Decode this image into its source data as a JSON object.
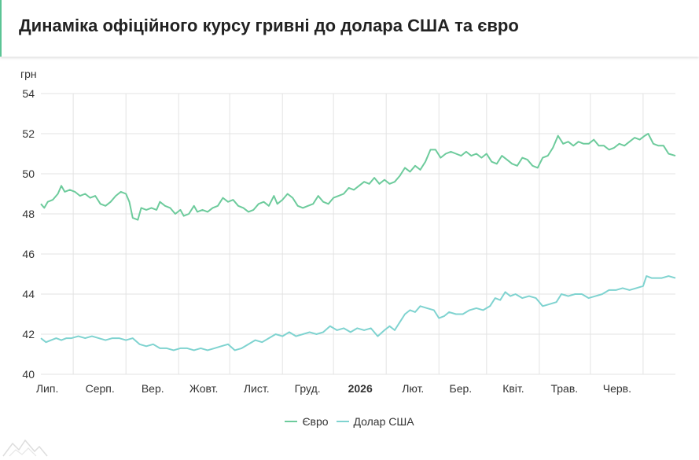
{
  "header": {
    "title": "Динаміка офіційного курсу гривні до долара США та євро"
  },
  "chart_data": {
    "type": "line",
    "title": "Динаміка офіційного курсу гривні до долара США та євро",
    "ylabel": "грн",
    "xlabel": "",
    "ylim": [
      40,
      54
    ],
    "yticks": [
      40,
      42,
      44,
      46,
      48,
      50,
      52,
      54
    ],
    "xlim": [
      "2025-06-12",
      "2026-06-20"
    ],
    "xticks": [
      {
        "date": "2025-07-01",
        "label": "Лип.",
        "bold": false
      },
      {
        "date": "2025-08-01",
        "label": "Серп.",
        "bold": false
      },
      {
        "date": "2025-09-01",
        "label": "Вер.",
        "bold": false
      },
      {
        "date": "2025-10-01",
        "label": "Жовт.",
        "bold": false
      },
      {
        "date": "2025-11-01",
        "label": "Лист.",
        "bold": false
      },
      {
        "date": "2025-12-01",
        "label": "Груд.",
        "bold": false
      },
      {
        "date": "2026-01-01",
        "label": "2026",
        "bold": true
      },
      {
        "date": "2026-02-01",
        "label": "Лют.",
        "bold": false
      },
      {
        "date": "2026-03-01",
        "label": "Бер.",
        "bold": false
      },
      {
        "date": "2026-04-01",
        "label": "Квіт.",
        "bold": false
      },
      {
        "date": "2026-05-01",
        "label": "Трав.",
        "bold": false
      },
      {
        "date": "2026-06-01",
        "label": "Черв.",
        "bold": false
      }
    ],
    "grid": true,
    "legend": "bottom-center",
    "series": [
      {
        "name": "Євро",
        "color": "#6dcb9c",
        "points": [
          [
            "2025-06-12",
            48.5
          ],
          [
            "2025-06-14",
            48.3
          ],
          [
            "2025-06-16",
            48.6
          ],
          [
            "2025-06-19",
            48.7
          ],
          [
            "2025-06-22",
            49.0
          ],
          [
            "2025-06-24",
            49.4
          ],
          [
            "2025-06-26",
            49.1
          ],
          [
            "2025-06-29",
            49.2
          ],
          [
            "2025-07-02",
            49.1
          ],
          [
            "2025-07-05",
            48.9
          ],
          [
            "2025-07-08",
            49.0
          ],
          [
            "2025-07-11",
            48.8
          ],
          [
            "2025-07-14",
            48.9
          ],
          [
            "2025-07-17",
            48.5
          ],
          [
            "2025-07-20",
            48.4
          ],
          [
            "2025-07-23",
            48.6
          ],
          [
            "2025-07-26",
            48.9
          ],
          [
            "2025-07-29",
            49.1
          ],
          [
            "2025-08-01",
            49.0
          ],
          [
            "2025-08-03",
            48.6
          ],
          [
            "2025-08-05",
            47.8
          ],
          [
            "2025-08-08",
            47.7
          ],
          [
            "2025-08-10",
            48.3
          ],
          [
            "2025-08-13",
            48.2
          ],
          [
            "2025-08-16",
            48.3
          ],
          [
            "2025-08-19",
            48.2
          ],
          [
            "2025-08-21",
            48.6
          ],
          [
            "2025-08-24",
            48.4
          ],
          [
            "2025-08-27",
            48.3
          ],
          [
            "2025-08-30",
            48.0
          ],
          [
            "2025-09-02",
            48.2
          ],
          [
            "2025-09-04",
            47.9
          ],
          [
            "2025-09-07",
            48.0
          ],
          [
            "2025-09-10",
            48.4
          ],
          [
            "2025-09-12",
            48.1
          ],
          [
            "2025-09-15",
            48.2
          ],
          [
            "2025-09-18",
            48.1
          ],
          [
            "2025-09-21",
            48.3
          ],
          [
            "2025-09-24",
            48.4
          ],
          [
            "2025-09-27",
            48.8
          ],
          [
            "2025-09-30",
            48.6
          ],
          [
            "2025-10-03",
            48.7
          ],
          [
            "2025-10-06",
            48.4
          ],
          [
            "2025-10-09",
            48.3
          ],
          [
            "2025-10-12",
            48.1
          ],
          [
            "2025-10-15",
            48.2
          ],
          [
            "2025-10-18",
            48.5
          ],
          [
            "2025-10-21",
            48.6
          ],
          [
            "2025-10-24",
            48.4
          ],
          [
            "2025-10-27",
            48.9
          ],
          [
            "2025-10-29",
            48.5
          ],
          [
            "2025-11-01",
            48.7
          ],
          [
            "2025-11-04",
            49.0
          ],
          [
            "2025-11-07",
            48.8
          ],
          [
            "2025-11-10",
            48.4
          ],
          [
            "2025-11-13",
            48.3
          ],
          [
            "2025-11-16",
            48.4
          ],
          [
            "2025-11-19",
            48.5
          ],
          [
            "2025-11-22",
            48.9
          ],
          [
            "2025-11-25",
            48.6
          ],
          [
            "2025-11-28",
            48.5
          ],
          [
            "2025-12-01",
            48.8
          ],
          [
            "2025-12-04",
            48.9
          ],
          [
            "2025-12-07",
            49.0
          ],
          [
            "2025-12-10",
            49.3
          ],
          [
            "2025-12-13",
            49.2
          ],
          [
            "2025-12-16",
            49.4
          ],
          [
            "2025-12-19",
            49.6
          ],
          [
            "2025-12-22",
            49.5
          ],
          [
            "2025-12-25",
            49.8
          ],
          [
            "2025-12-28",
            49.5
          ],
          [
            "2025-12-31",
            49.7
          ],
          [
            "2026-01-03",
            49.5
          ],
          [
            "2026-01-06",
            49.6
          ],
          [
            "2026-01-09",
            49.9
          ],
          [
            "2026-01-12",
            50.3
          ],
          [
            "2026-01-15",
            50.1
          ],
          [
            "2026-01-18",
            50.4
          ],
          [
            "2026-01-21",
            50.2
          ],
          [
            "2026-01-24",
            50.6
          ],
          [
            "2026-01-27",
            51.2
          ],
          [
            "2026-01-30",
            51.2
          ],
          [
            "2026-02-02",
            50.8
          ],
          [
            "2026-02-05",
            51.0
          ],
          [
            "2026-02-08",
            51.1
          ],
          [
            "2026-02-11",
            51.0
          ],
          [
            "2026-02-14",
            50.9
          ],
          [
            "2026-02-17",
            51.1
          ],
          [
            "2026-02-20",
            50.9
          ],
          [
            "2026-02-23",
            51.0
          ],
          [
            "2026-02-26",
            50.8
          ],
          [
            "2026-03-01",
            51.0
          ],
          [
            "2026-03-04",
            50.6
          ],
          [
            "2026-03-07",
            50.5
          ],
          [
            "2026-03-10",
            50.9
          ],
          [
            "2026-03-13",
            50.7
          ],
          [
            "2026-03-16",
            50.5
          ],
          [
            "2026-03-19",
            50.4
          ],
          [
            "2026-03-22",
            50.8
          ],
          [
            "2026-03-25",
            50.7
          ],
          [
            "2026-03-28",
            50.4
          ],
          [
            "2026-03-31",
            50.3
          ],
          [
            "2026-04-03",
            50.8
          ],
          [
            "2026-04-06",
            50.9
          ],
          [
            "2026-04-09",
            51.3
          ],
          [
            "2026-04-12",
            51.9
          ],
          [
            "2026-04-15",
            51.5
          ],
          [
            "2026-04-18",
            51.6
          ],
          [
            "2026-04-21",
            51.4
          ],
          [
            "2026-04-24",
            51.6
          ],
          [
            "2026-04-27",
            51.5
          ],
          [
            "2026-04-30",
            51.5
          ],
          [
            "2026-05-03",
            51.7
          ],
          [
            "2026-05-06",
            51.4
          ],
          [
            "2026-05-09",
            51.4
          ],
          [
            "2026-05-12",
            51.2
          ],
          [
            "2026-05-15",
            51.3
          ],
          [
            "2026-05-18",
            51.5
          ],
          [
            "2026-05-21",
            51.4
          ],
          [
            "2026-05-24",
            51.6
          ],
          [
            "2026-05-27",
            51.8
          ],
          [
            "2026-05-30",
            51.7
          ],
          [
            "2026-06-02",
            51.9
          ],
          [
            "2026-06-04",
            52.0
          ],
          [
            "2026-06-07",
            51.5
          ],
          [
            "2026-06-10",
            51.4
          ],
          [
            "2026-06-13",
            51.4
          ],
          [
            "2026-06-16",
            51.0
          ],
          [
            "2026-06-20",
            50.9
          ]
        ]
      },
      {
        "name": "Долар США",
        "color": "#7fd3d0",
        "points": [
          [
            "2025-06-12",
            41.8
          ],
          [
            "2025-06-15",
            41.6
          ],
          [
            "2025-06-18",
            41.7
          ],
          [
            "2025-06-21",
            41.8
          ],
          [
            "2025-06-24",
            41.7
          ],
          [
            "2025-06-27",
            41.8
          ],
          [
            "2025-06-30",
            41.8
          ],
          [
            "2025-07-04",
            41.9
          ],
          [
            "2025-07-08",
            41.8
          ],
          [
            "2025-07-12",
            41.9
          ],
          [
            "2025-07-16",
            41.8
          ],
          [
            "2025-07-20",
            41.7
          ],
          [
            "2025-07-24",
            41.8
          ],
          [
            "2025-07-28",
            41.8
          ],
          [
            "2025-08-01",
            41.7
          ],
          [
            "2025-08-05",
            41.8
          ],
          [
            "2025-08-09",
            41.5
          ],
          [
            "2025-08-13",
            41.4
          ],
          [
            "2025-08-17",
            41.5
          ],
          [
            "2025-08-21",
            41.3
          ],
          [
            "2025-08-25",
            41.3
          ],
          [
            "2025-08-29",
            41.2
          ],
          [
            "2025-09-02",
            41.3
          ],
          [
            "2025-09-06",
            41.3
          ],
          [
            "2025-09-10",
            41.2
          ],
          [
            "2025-09-14",
            41.3
          ],
          [
            "2025-09-18",
            41.2
          ],
          [
            "2025-09-22",
            41.3
          ],
          [
            "2025-09-26",
            41.4
          ],
          [
            "2025-09-30",
            41.5
          ],
          [
            "2025-10-04",
            41.2
          ],
          [
            "2025-10-08",
            41.3
          ],
          [
            "2025-10-12",
            41.5
          ],
          [
            "2025-10-16",
            41.7
          ],
          [
            "2025-10-20",
            41.6
          ],
          [
            "2025-10-24",
            41.8
          ],
          [
            "2025-10-28",
            42.0
          ],
          [
            "2025-11-01",
            41.9
          ],
          [
            "2025-11-05",
            42.1
          ],
          [
            "2025-11-09",
            41.9
          ],
          [
            "2025-11-13",
            42.0
          ],
          [
            "2025-11-17",
            42.1
          ],
          [
            "2025-11-21",
            42.0
          ],
          [
            "2025-11-25",
            42.1
          ],
          [
            "2025-11-29",
            42.4
          ],
          [
            "2025-12-03",
            42.2
          ],
          [
            "2025-12-07",
            42.3
          ],
          [
            "2025-12-11",
            42.1
          ],
          [
            "2025-12-15",
            42.3
          ],
          [
            "2025-12-19",
            42.2
          ],
          [
            "2025-12-23",
            42.3
          ],
          [
            "2025-12-27",
            41.9
          ],
          [
            "2025-12-31",
            42.2
          ],
          [
            "2026-01-03",
            42.4
          ],
          [
            "2026-01-06",
            42.2
          ],
          [
            "2026-01-09",
            42.6
          ],
          [
            "2026-01-12",
            43.0
          ],
          [
            "2026-01-15",
            43.2
          ],
          [
            "2026-01-18",
            43.1
          ],
          [
            "2026-01-21",
            43.4
          ],
          [
            "2026-01-25",
            43.3
          ],
          [
            "2026-01-29",
            43.2
          ],
          [
            "2026-02-01",
            42.8
          ],
          [
            "2026-02-04",
            42.9
          ],
          [
            "2026-02-07",
            43.1
          ],
          [
            "2026-02-11",
            43.0
          ],
          [
            "2026-02-15",
            43.0
          ],
          [
            "2026-02-19",
            43.2
          ],
          [
            "2026-02-23",
            43.3
          ],
          [
            "2026-02-27",
            43.2
          ],
          [
            "2026-03-03",
            43.4
          ],
          [
            "2026-03-06",
            43.8
          ],
          [
            "2026-03-09",
            43.7
          ],
          [
            "2026-03-12",
            44.1
          ],
          [
            "2026-03-15",
            43.9
          ],
          [
            "2026-03-18",
            44.0
          ],
          [
            "2026-03-22",
            43.8
          ],
          [
            "2026-03-26",
            43.9
          ],
          [
            "2026-03-30",
            43.8
          ],
          [
            "2026-04-03",
            43.4
          ],
          [
            "2026-04-07",
            43.5
          ],
          [
            "2026-04-11",
            43.6
          ],
          [
            "2026-04-14",
            44.0
          ],
          [
            "2026-04-18",
            43.9
          ],
          [
            "2026-04-22",
            44.0
          ],
          [
            "2026-04-26",
            44.0
          ],
          [
            "2026-04-30",
            43.8
          ],
          [
            "2026-05-04",
            43.9
          ],
          [
            "2026-05-08",
            44.0
          ],
          [
            "2026-05-12",
            44.2
          ],
          [
            "2026-05-16",
            44.2
          ],
          [
            "2026-05-20",
            44.3
          ],
          [
            "2026-05-24",
            44.2
          ],
          [
            "2026-05-28",
            44.3
          ],
          [
            "2026-06-01",
            44.4
          ],
          [
            "2026-06-03",
            44.9
          ],
          [
            "2026-06-06",
            44.8
          ],
          [
            "2026-06-09",
            44.8
          ],
          [
            "2026-06-12",
            44.8
          ],
          [
            "2026-06-16",
            44.9
          ],
          [
            "2026-06-20",
            44.8
          ]
        ]
      }
    ]
  }
}
